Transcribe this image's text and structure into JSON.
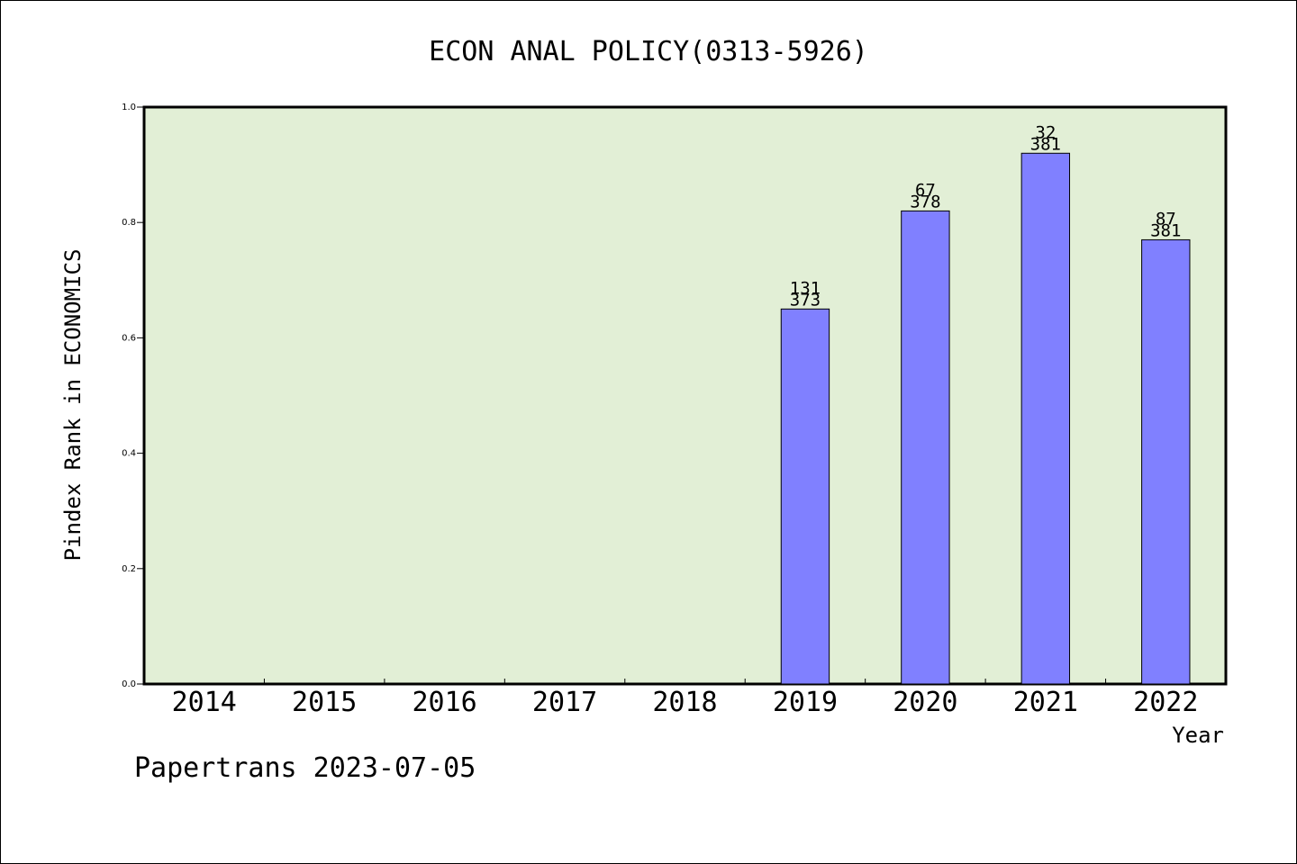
{
  "chart_data": {
    "type": "bar",
    "title": "ECON ANAL POLICY(0313-5926)",
    "xlabel": "Year",
    "ylabel": "Pindex Rank in ECONOMICS",
    "footer": "Papertrans 2023-07-05",
    "categories": [
      "2014",
      "2015",
      "2016",
      "2017",
      "2018",
      "2019",
      "2020",
      "2021",
      "2022"
    ],
    "values": [
      0,
      0,
      0,
      0,
      0,
      0.65,
      0.82,
      0.92,
      0.77
    ],
    "labels_top": [
      "",
      "",
      "",
      "",
      "",
      "131",
      "67",
      "32",
      "87"
    ],
    "labels_bottom": [
      "",
      "",
      "",
      "",
      "",
      "373",
      "378",
      "381",
      "381"
    ],
    "ylim": [
      0,
      1.0
    ],
    "yticks": [
      "0.0",
      "0.2",
      "0.4",
      "0.6",
      "0.8",
      "1.0"
    ],
    "grid": false,
    "colors": {
      "bar": "#8080ff",
      "plot_bg": "#e2efd6",
      "axis": "#000000"
    }
  }
}
